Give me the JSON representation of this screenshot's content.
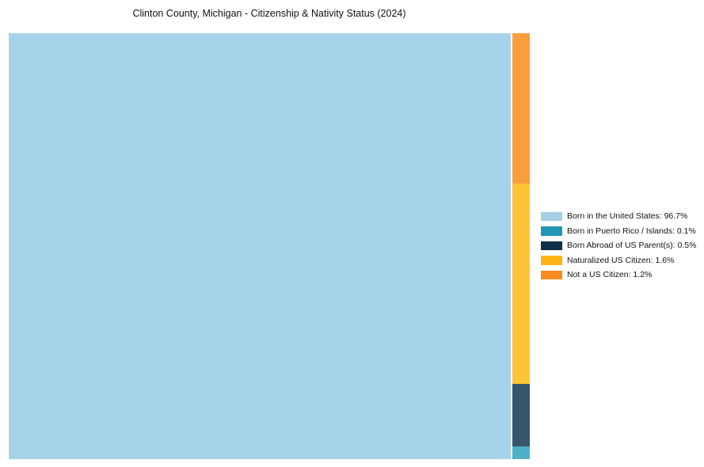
{
  "title": "Clinton County, Michigan - Citizenship & Nativity Status (2024)",
  "chart_data": {
    "type": "treemap",
    "title": "Clinton County, Michigan - Citizenship & Nativity Status (2024)",
    "unit": "percent",
    "items": [
      {
        "label": "Born in the United States",
        "value": 96.7,
        "legend_text": "Born in the United States: 96.7%",
        "swatch_color": "#a3cfe7",
        "fill_color": "#a6d3ea"
      },
      {
        "label": "Born in Puerto Rico / Islands",
        "value": 0.1,
        "legend_text": "Born in Puerto Rico / Islands: 0.1%",
        "swatch_color": "#2196b5",
        "fill_color": "#4cb0c6"
      },
      {
        "label": "Born Abroad of US Parent(s)",
        "value": 0.5,
        "legend_text": "Born Abroad of US Parent(s): 0.5%",
        "swatch_color": "#0d2f47",
        "fill_color": "#36576b"
      },
      {
        "label": "Naturalized US Citizen",
        "value": 1.6,
        "legend_text": "Naturalized US Citizen: 1.6%",
        "swatch_color": "#fcb316",
        "fill_color": "#fdc437"
      },
      {
        "label": "Not a US Citizen",
        "value": 1.2,
        "legend_text": "Not a US Citizen: 1.2%",
        "swatch_color": "#f78b1e",
        "fill_color": "#fa9e3d"
      }
    ],
    "layout": {
      "main_item_index": 0,
      "side_column_top_to_bottom": [
        4,
        3,
        2,
        1
      ],
      "legend_position": "right-middle",
      "background": "#ffffff",
      "grid": false
    }
  }
}
